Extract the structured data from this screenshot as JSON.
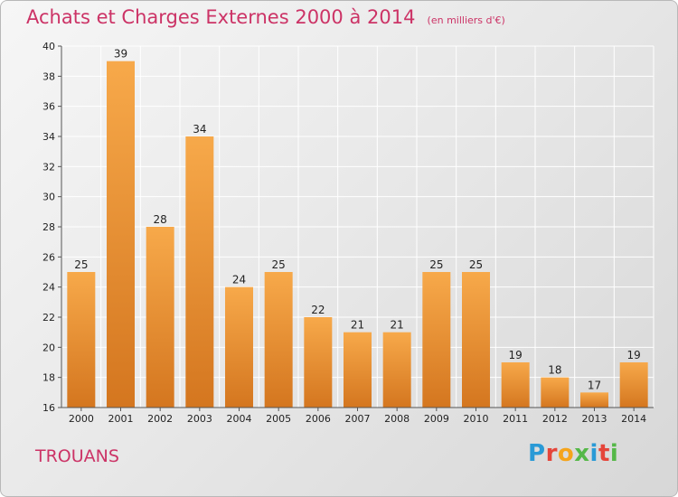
{
  "title": "Achats et Charges Externes 2000 à 2014",
  "subtitle": "(en milliers d'€)",
  "town": "TROUANS",
  "logo": {
    "letters": [
      "P",
      "r",
      "o",
      "x",
      "i",
      "t",
      "i"
    ],
    "colors": [
      "#2a9ad6",
      "#e5453a",
      "#f5a41b",
      "#55b848",
      "#2a9ad6",
      "#e5453a",
      "#55b848"
    ]
  },
  "colors": {
    "bar": "#f39c3a",
    "title": "#cc3366"
  },
  "chart_data": {
    "type": "bar",
    "title": "Achats et Charges Externes 2000 à 2014",
    "subtitle": "(en milliers d'€)",
    "categories": [
      "2000",
      "2001",
      "2002",
      "2003",
      "2004",
      "2005",
      "2006",
      "2007",
      "2008",
      "2009",
      "2010",
      "2011",
      "2012",
      "2013",
      "2014"
    ],
    "values": [
      25,
      39,
      28,
      34,
      24,
      25,
      22,
      21,
      21,
      25,
      25,
      19,
      18,
      17,
      19
    ],
    "ylim": [
      16,
      40
    ],
    "yticks": [
      16,
      18,
      20,
      22,
      24,
      26,
      28,
      30,
      32,
      34,
      36,
      38,
      40
    ],
    "grid": true,
    "xlabel": "",
    "ylabel": ""
  }
}
